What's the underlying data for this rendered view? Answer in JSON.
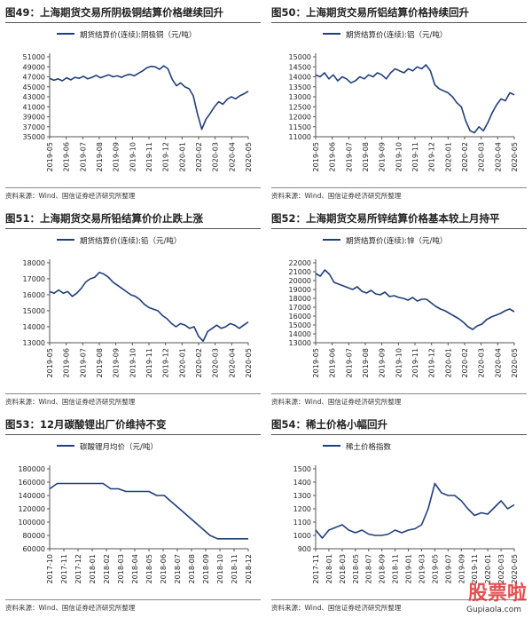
{
  "panels": [
    {
      "title": "图49：上海期货交易所阴极铜结算价格继续回升",
      "source": "资料来源：Wind、国信证券经济研究所整理"
    },
    {
      "title": "图50：上海期货交易所铝结算价格持续回升",
      "source": "资料来源：Wind、国信证券经济研究所整理"
    },
    {
      "title": "图51：上海期货交易所铅结算价价止跌上涨",
      "source": "资料来源：Wind、国信证券经济研究所整理"
    },
    {
      "title": "图52：上海期货交易所锌结算价格基本较上月持平",
      "source": "资料来源：Wind、国信证券经济研究所整理"
    },
    {
      "title": "图53：12月碳酸锂出厂价维持不变",
      "source": "资料来源：Wind、国信证券经济研究所整理"
    },
    {
      "title": "图54：稀土价格小幅回升",
      "source": "资料来源：Wind、国信证券经济研究所整理"
    }
  ],
  "watermark": {
    "text": "股票啦",
    "url": "Gupiaola.com"
  },
  "chart_data": [
    {
      "type": "line",
      "series": [
        {
          "name": "期货结算价(连续):阴极铜（元/吨）",
          "values": [
            46700,
            46300,
            46600,
            46200,
            46800,
            46400,
            46900,
            46700,
            47100,
            46600,
            46900,
            47300,
            46800,
            47100,
            47400,
            47000,
            47200,
            46900,
            47300,
            47500,
            47200,
            47700,
            48200,
            48800,
            49100,
            49000,
            48500,
            49200,
            48600,
            46500,
            45200,
            45800,
            45000,
            44600,
            43200,
            39500,
            36500,
            38500,
            39700,
            41000,
            42000,
            41500,
            42500,
            43000,
            42600,
            43200,
            43600,
            44100
          ]
        }
      ],
      "x_ticks": [
        "2019-05",
        "2019-06",
        "2019-07",
        "2019-08",
        "2019-09",
        "2019-10",
        "2019-11",
        "2019-12",
        "2020-01",
        "2020-02",
        "2020-03",
        "2020-04",
        "2020-05"
      ],
      "y_ticks": [
        "35000",
        "37000",
        "39000",
        "41000",
        "43000",
        "45000",
        "47000",
        "49000",
        "51000"
      ],
      "ylim": [
        35000,
        51000
      ],
      "color": "#1f3f7a"
    },
    {
      "type": "line",
      "series": [
        {
          "name": "期货结算价(连续):铝（元/吨）",
          "values": [
            14100,
            14000,
            14200,
            13900,
            14100,
            13800,
            14000,
            13900,
            13700,
            13800,
            14000,
            13900,
            14100,
            14000,
            14200,
            14100,
            13900,
            14200,
            14400,
            14300,
            14200,
            14400,
            14300,
            14500,
            14400,
            14600,
            14300,
            13600,
            13400,
            13300,
            13200,
            13000,
            12700,
            12500,
            11800,
            11300,
            11200,
            11500,
            11300,
            11700,
            12200,
            12600,
            12900,
            12800,
            13200,
            13100
          ]
        }
      ],
      "x_ticks": [
        "2019-05",
        "2019-06",
        "2019-07",
        "2019-08",
        "2019-09",
        "2019-10",
        "2019-11",
        "2019-12",
        "2020-01",
        "2020-02",
        "2020-03",
        "2020-04",
        "2020-05"
      ],
      "y_ticks": [
        "11000",
        "11500",
        "12000",
        "12500",
        "13000",
        "13500",
        "14000",
        "14500",
        "15000"
      ],
      "ylim": [
        11000,
        15000
      ],
      "color": "#1f3f7a"
    },
    {
      "type": "line",
      "series": [
        {
          "name": "期货结算价(连续):铅（元/吨）",
          "values": [
            16200,
            16100,
            16300,
            16100,
            16200,
            15900,
            16100,
            16400,
            16800,
            17000,
            17100,
            17400,
            17300,
            17100,
            16800,
            16600,
            16400,
            16200,
            16000,
            15900,
            15700,
            15400,
            15200,
            15100,
            15000,
            14700,
            14500,
            14200,
            14000,
            14200,
            14100,
            13900,
            14000,
            13400,
            13100,
            13700,
            13900,
            14100,
            13900,
            14000,
            14200,
            14100,
            13900,
            14100,
            14300
          ]
        }
      ],
      "x_ticks": [
        "2019-05",
        "2019-06",
        "2019-07",
        "2019-08",
        "2019-09",
        "2019-10",
        "2019-11",
        "2019-12",
        "2020-01",
        "2020-02",
        "2020-03",
        "2020-04",
        "2020-05"
      ],
      "y_ticks": [
        "13000",
        "14000",
        "15000",
        "16000",
        "17000",
        "18000"
      ],
      "ylim": [
        13000,
        18000
      ],
      "color": "#1f3f7a"
    },
    {
      "type": "line",
      "series": [
        {
          "name": "期货结算价(连续):锌（元/吨）",
          "values": [
            20800,
            20500,
            21200,
            20700,
            19800,
            19600,
            19400,
            19200,
            19000,
            19300,
            18800,
            18600,
            18900,
            18500,
            18400,
            18700,
            18200,
            18300,
            18100,
            18000,
            17800,
            18100,
            17700,
            17900,
            17900,
            17500,
            17100,
            16800,
            16600,
            16300,
            16000,
            15700,
            15300,
            14800,
            14500,
            14900,
            15100,
            15600,
            15900,
            16100,
            16300,
            16600,
            16800,
            16500
          ]
        }
      ],
      "x_ticks": [
        "2019-05",
        "2019-06",
        "2019-07",
        "2019-08",
        "2019-09",
        "2019-10",
        "2019-11",
        "2019-12",
        "2020-01",
        "2020-02",
        "2020-03",
        "2020-04",
        "2020-05"
      ],
      "y_ticks": [
        "13000",
        "14000",
        "15000",
        "16000",
        "17000",
        "18000",
        "19000",
        "20000",
        "21000",
        "22000"
      ],
      "ylim": [
        13000,
        22000
      ],
      "color": "#1f3f7a"
    },
    {
      "type": "line",
      "series": [
        {
          "name": "碳酸锂月均价（元/吨）",
          "values": [
            150000,
            158000,
            158000,
            158000,
            158000,
            158000,
            158000,
            158000,
            150000,
            150000,
            146000,
            146000,
            146000,
            146000,
            140000,
            140000,
            130000,
            120000,
            110000,
            100000,
            90000,
            80000,
            75000,
            75000,
            75000,
            75000,
            75000
          ]
        }
      ],
      "x_ticks": [
        "2017-10",
        "2017-11",
        "2017-12",
        "2018-01",
        "2018-02",
        "2018-03",
        "2018-04",
        "2018-05",
        "2018-06",
        "2018-07",
        "2018-08",
        "2018-09",
        "2018-10",
        "2018-11",
        "2018-12"
      ],
      "y_ticks": [
        "60000",
        "80000",
        "100000",
        "120000",
        "140000",
        "160000",
        "180000"
      ],
      "ylim": [
        60000,
        180000
      ],
      "color": "#1f3f7a"
    },
    {
      "type": "line",
      "series": [
        {
          "name": "稀土价格指数",
          "values": [
            1040,
            980,
            1040,
            1060,
            1080,
            1040,
            1020,
            1040,
            1010,
            1000,
            1000,
            1010,
            1040,
            1020,
            1040,
            1050,
            1080,
            1200,
            1390,
            1320,
            1300,
            1300,
            1260,
            1200,
            1150,
            1170,
            1160,
            1210,
            1260,
            1200,
            1230
          ]
        }
      ],
      "x_ticks": [
        "2017-11",
        "2018-01",
        "2018-03",
        "2018-05",
        "2018-07",
        "2018-09",
        "2018-11",
        "2019-01",
        "2019-03",
        "2019-05",
        "2019-07",
        "2019-09",
        "2019-11",
        "2020-01",
        "2020-03",
        "2020-05"
      ],
      "y_ticks": [
        "900",
        "1000",
        "1100",
        "1200",
        "1300",
        "1400",
        "1500"
      ],
      "ylim": [
        900,
        1500
      ],
      "color": "#1f3f7a"
    }
  ]
}
